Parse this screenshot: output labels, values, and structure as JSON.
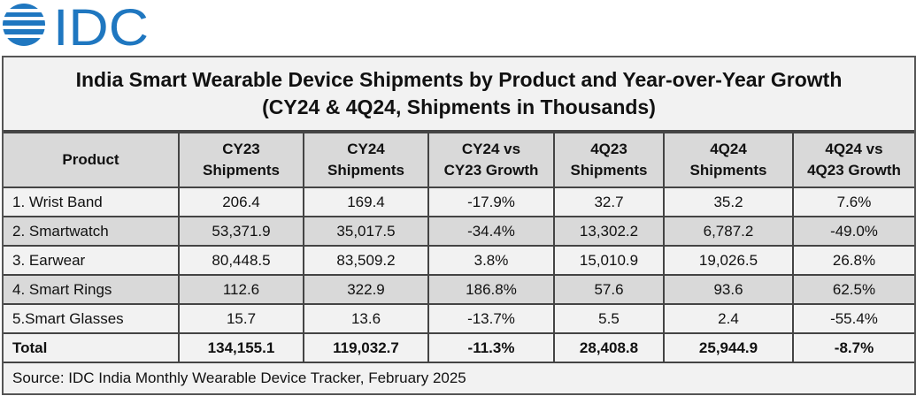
{
  "logo": {
    "text": "IDC",
    "color": "#1f77c0"
  },
  "chart_data": {
    "type": "table",
    "title": "India Smart Wearable Device Shipments by Product and Year-over-Year Growth",
    "subtitle": "(CY24 & 4Q24, Shipments in Thousands)",
    "columns": [
      "Product",
      "CY23\nShipments",
      "CY24\nShipments",
      "CY24 vs\nCY23 Growth",
      "4Q23\nShipments",
      "4Q24\nShipments",
      "4Q24 vs\n4Q23 Growth"
    ],
    "rows": [
      [
        "1. Wrist Band",
        "206.4",
        "169.4",
        "-17.9%",
        "32.7",
        "35.2",
        "7.6%"
      ],
      [
        "2. Smartwatch",
        "53,371.9",
        "35,017.5",
        "-34.4%",
        "13,302.2",
        "6,787.2",
        "-49.0%"
      ],
      [
        "3. Earwear",
        "80,448.5",
        "83,509.2",
        "3.8%",
        "15,010.9",
        "19,026.5",
        "26.8%"
      ],
      [
        "4. Smart Rings",
        "112.6",
        "322.9",
        "186.8%",
        "57.6",
        "93.6",
        "62.5%"
      ],
      [
        "5.Smart Glasses",
        "15.7",
        "13.6",
        "-13.7%",
        "5.5",
        "2.4",
        "-55.4%"
      ]
    ],
    "total": [
      "Total",
      "134,155.1",
      "119,032.7",
      "-11.3%",
      "28,408.8",
      "25,944.9",
      "-8.7%"
    ],
    "source": "Source: IDC India Monthly Wearable Device Tracker, February 2025"
  }
}
